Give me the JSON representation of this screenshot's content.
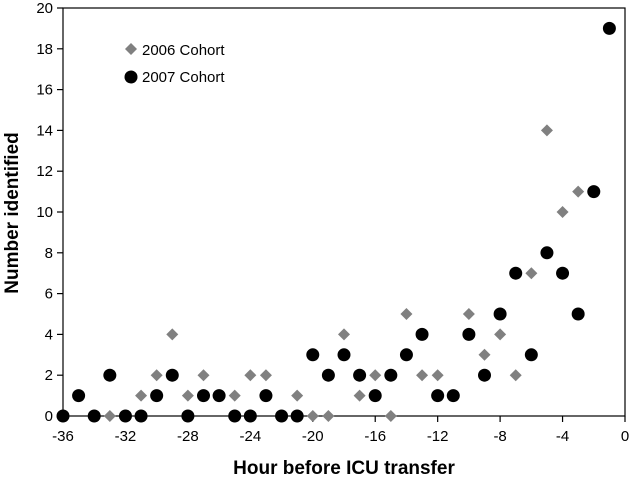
{
  "chart_data": {
    "type": "scatter",
    "xlabel": "Hour before ICU transfer",
    "ylabel": "Number identified",
    "xlim": [
      -36,
      0
    ],
    "ylim": [
      0,
      20
    ],
    "xticks": [
      -36,
      -32,
      -28,
      -24,
      -20,
      -16,
      -12,
      -8,
      -4,
      0
    ],
    "yticks": [
      0,
      2,
      4,
      6,
      8,
      10,
      12,
      14,
      16,
      18,
      20
    ],
    "grid": false,
    "legend_position": "top-left",
    "series": [
      {
        "name": "2006 Cohort",
        "marker": "diamond",
        "color": "#808080",
        "x": [
          -36,
          -35,
          -34,
          -33,
          -32,
          -31,
          -30,
          -29,
          -28,
          -27,
          -26,
          -25,
          -24,
          -23,
          -22,
          -21,
          -20,
          -19,
          -18,
          -17,
          -16,
          -15,
          -14,
          -13,
          -12,
          -11,
          -10,
          -9,
          -8,
          -7,
          -6,
          -5,
          -4,
          -3,
          -2,
          -1
        ],
        "y": [
          0,
          1,
          0,
          0,
          0,
          1,
          2,
          4,
          1,
          2,
          1,
          1,
          2,
          2,
          0,
          1,
          0,
          0,
          4,
          1,
          2,
          0,
          5,
          2,
          2,
          1,
          5,
          3,
          4,
          2,
          7,
          14,
          10,
          11,
          11,
          19
        ]
      },
      {
        "name": "2007 Cohort",
        "marker": "circle",
        "color": "#000000",
        "x": [
          -36,
          -35,
          -34,
          -33,
          -32,
          -31,
          -30,
          -29,
          -28,
          -27,
          -26,
          -25,
          -24,
          -23,
          -22,
          -21,
          -20,
          -19,
          -18,
          -17,
          -16,
          -15,
          -14,
          -13,
          -12,
          -11,
          -10,
          -9,
          -8,
          -7,
          -6,
          -5,
          -4,
          -3,
          -2,
          -1
        ],
        "y": [
          0,
          1,
          0,
          2,
          0,
          0,
          1,
          2,
          0,
          1,
          1,
          0,
          0,
          1,
          0,
          0,
          3,
          2,
          3,
          2,
          1,
          2,
          3,
          4,
          1,
          1,
          4,
          2,
          5,
          7,
          3,
          8,
          7,
          5,
          11,
          19
        ]
      }
    ]
  }
}
